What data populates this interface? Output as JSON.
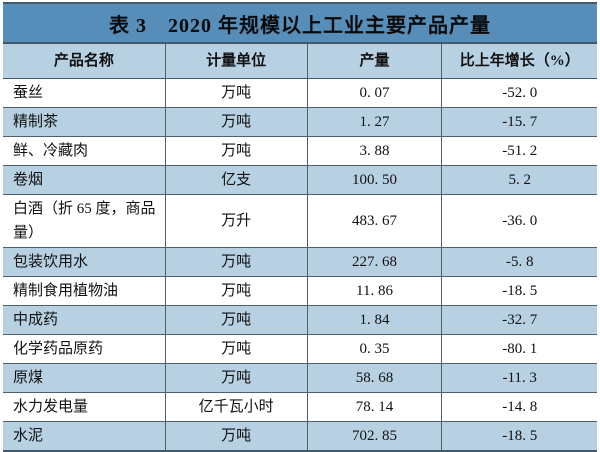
{
  "table": {
    "title": "表 3　2020 年规模以上工业主要产品产量",
    "columns": [
      "产品名称",
      "计量单位",
      "产量",
      "比上年增长（%）"
    ],
    "rows": [
      {
        "name": "蚕丝",
        "unit": "万吨",
        "output": "0. 07",
        "growth": "-52. 0"
      },
      {
        "name": "精制茶",
        "unit": "万吨",
        "output": "1. 27",
        "growth": "-15. 7"
      },
      {
        "name": "鲜、冷藏肉",
        "unit": "万吨",
        "output": "3. 88",
        "growth": "-51. 2"
      },
      {
        "name": "卷烟",
        "unit": "亿支",
        "output": "100. 50",
        "growth": "5. 2"
      },
      {
        "name": "白酒（折 65 度，商品量）",
        "unit": "万升",
        "output": "483. 67",
        "growth": "-36. 0"
      },
      {
        "name": "包装饮用水",
        "unit": "万吨",
        "output": "227. 68",
        "growth": "-5. 8"
      },
      {
        "name": "精制食用植物油",
        "unit": "万吨",
        "output": "11. 86",
        "growth": "-18. 5"
      },
      {
        "name": "中成药",
        "unit": "万吨",
        "output": "1. 84",
        "growth": "-32. 7"
      },
      {
        "name": "化学药品原药",
        "unit": "万吨",
        "output": "0. 35",
        "growth": "-80. 1"
      },
      {
        "name": "原煤",
        "unit": "万吨",
        "output": "58. 68",
        "growth": "-11. 3"
      },
      {
        "name": "水力发电量",
        "unit": "亿千瓦小时",
        "output": "78. 14",
        "growth": "-14. 8"
      },
      {
        "name": "水泥",
        "unit": "万吨",
        "output": "702. 85",
        "growth": "-18. 5"
      }
    ],
    "colors": {
      "title_bar": "#568db9",
      "header_row": "#b7d1e3",
      "row_alt": "#b7d1e3",
      "row_base": "#ffffff",
      "rule": "#4f606c",
      "outer_rule": "#42586b",
      "text": "#111111"
    }
  }
}
